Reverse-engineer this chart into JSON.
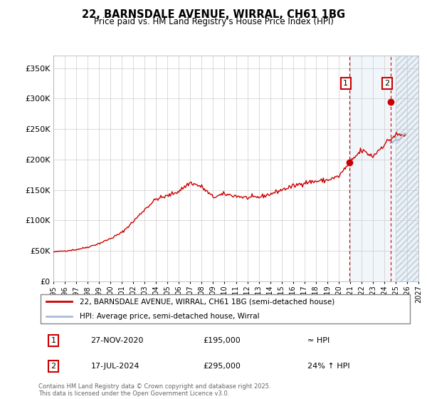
{
  "title": "22, BARNSDALE AVENUE, WIRRAL, CH61 1BG",
  "subtitle": "Price paid vs. HM Land Registry's House Price Index (HPI)",
  "ylabel_ticks": [
    "£0",
    "£50K",
    "£100K",
    "£150K",
    "£200K",
    "£250K",
    "£300K",
    "£350K"
  ],
  "ytick_vals": [
    0,
    50000,
    100000,
    150000,
    200000,
    250000,
    300000,
    350000
  ],
  "ylim": [
    0,
    370000
  ],
  "xlim_start": 1995.0,
  "xlim_end": 2027.0,
  "hpi_color": "#cc0000",
  "hpi_proj_color": "#aabbdd",
  "price_color": "#cc0000",
  "bg_color": "#ffffff",
  "grid_color": "#cccccc",
  "future_shade_color": "#e8f0f8",
  "future_hatch_color": "#c0c8d0",
  "legend_line1": "22, BARNSDALE AVENUE, WIRRAL, CH61 1BG (semi-detached house)",
  "legend_line2": "HPI: Average price, semi-detached house, Wirral",
  "annotation1_label": "1",
  "annotation1_date": "27-NOV-2020",
  "annotation1_price": "£195,000",
  "annotation1_hpi": "≈ HPI",
  "annotation2_label": "2",
  "annotation2_date": "17-JUL-2024",
  "annotation2_price": "£295,000",
  "annotation2_hpi": "24% ↑ HPI",
  "footer_text": "Contains HM Land Registry data © Crown copyright and database right 2025.\nThis data is licensed under the Open Government Licence v3.0.",
  "sale1_x": 2020.92,
  "sale1_y": 195000,
  "sale2_x": 2024.54,
  "sale2_y": 295000,
  "vline1_x": 2020.92,
  "vline2_x": 2024.54,
  "future_shade_start": 2025.0,
  "between_shade_start": 2020.92,
  "between_shade_end": 2024.54
}
